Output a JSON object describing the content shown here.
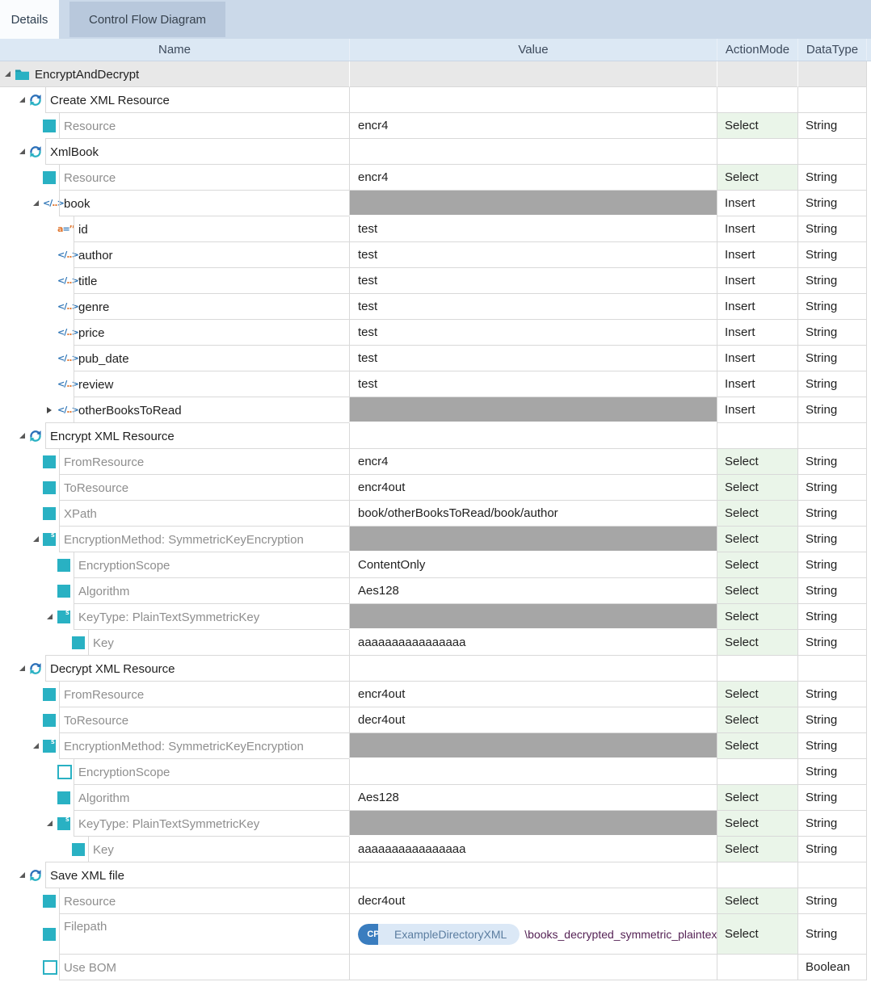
{
  "tabs": [
    {
      "label": "Details",
      "active": true
    },
    {
      "label": "Control Flow Diagram",
      "active": false
    }
  ],
  "columns": {
    "name": "Name",
    "value": "Value",
    "action": "ActionMode",
    "datatype": "DataType"
  },
  "colors": {
    "accent_teal": "#29b1c3",
    "accent_blue": "#2e75b6",
    "select_green_bg": "#eaf5e9",
    "gray_value_bar": "#a6a6a6",
    "root_row_bg": "#e8e8e8",
    "header_bg": "#dce8f4",
    "tabbar_bg": "#cbd9e9",
    "inactive_tab_bg": "#b8c8dc",
    "filepath_text": "#552255"
  },
  "filepath_value": {
    "badge": "CP",
    "directory": "ExampleDirectoryXML",
    "path": "\\books_decrypted_symmetric_plaintext.xml"
  },
  "rows": [
    {
      "name": "EncryptAndDecrypt",
      "level": 0,
      "icon": "folder",
      "tri": "open",
      "value": "",
      "vkind": "empty",
      "action": "",
      "dtype": "",
      "dim": false,
      "graybg": true
    },
    {
      "name": "Create XML Resource",
      "level": 1,
      "icon": "refresh",
      "tri": "open",
      "value": "",
      "vkind": "empty",
      "action": "",
      "dtype": "",
      "dim": false
    },
    {
      "name": "Resource",
      "level": 2,
      "icon": "sq",
      "tri": null,
      "value": "encr4",
      "vkind": "text",
      "action": "Select",
      "dtype": "String",
      "dim": true
    },
    {
      "name": "XmlBook",
      "level": 1,
      "icon": "refresh",
      "tri": "open",
      "value": "",
      "vkind": "empty",
      "action": "",
      "dtype": "",
      "dim": false
    },
    {
      "name": "Resource",
      "level": 2,
      "icon": "sq",
      "tri": null,
      "value": "encr4",
      "vkind": "text",
      "action": "Select",
      "dtype": "String",
      "dim": true
    },
    {
      "name": "book",
      "level": 2,
      "icon": "xml",
      "tri": "open",
      "value": "",
      "vkind": "gray",
      "action": "Insert",
      "dtype": "String",
      "dim": false
    },
    {
      "name": "id",
      "level": 3,
      "icon": "attr",
      "tri": null,
      "value": "test",
      "vkind": "text",
      "action": "Insert",
      "dtype": "String",
      "dim": false
    },
    {
      "name": "author",
      "level": 3,
      "icon": "xml",
      "tri": null,
      "value": "test",
      "vkind": "text",
      "action": "Insert",
      "dtype": "String",
      "dim": false
    },
    {
      "name": "title",
      "level": 3,
      "icon": "xml",
      "tri": null,
      "value": "test",
      "vkind": "text",
      "action": "Insert",
      "dtype": "String",
      "dim": false
    },
    {
      "name": "genre",
      "level": 3,
      "icon": "xml",
      "tri": null,
      "value": "test",
      "vkind": "text",
      "action": "Insert",
      "dtype": "String",
      "dim": false
    },
    {
      "name": "price",
      "level": 3,
      "icon": "xml",
      "tri": null,
      "value": "test",
      "vkind": "text",
      "action": "Insert",
      "dtype": "String",
      "dim": false
    },
    {
      "name": "pub_date",
      "level": 3,
      "icon": "xml",
      "tri": null,
      "value": "test",
      "vkind": "text",
      "action": "Insert",
      "dtype": "String",
      "dim": false
    },
    {
      "name": "review",
      "level": 3,
      "icon": "xml",
      "tri": null,
      "value": "test",
      "vkind": "text",
      "action": "Insert",
      "dtype": "String",
      "dim": false
    },
    {
      "name": "otherBooksToRead",
      "level": 3,
      "icon": "xml",
      "tri": "closed",
      "value": "",
      "vkind": "gray",
      "action": "Insert",
      "dtype": "String",
      "dim": false
    },
    {
      "name": "Encrypt XML Resource",
      "level": 1,
      "icon": "refresh",
      "tri": "open",
      "value": "",
      "vkind": "empty",
      "action": "",
      "dtype": "",
      "dim": false
    },
    {
      "name": "FromResource",
      "level": 2,
      "icon": "sq",
      "tri": null,
      "value": "encr4",
      "vkind": "text",
      "action": "Select",
      "dtype": "String",
      "dim": true
    },
    {
      "name": "ToResource",
      "level": 2,
      "icon": "sq",
      "tri": null,
      "value": "encr4out",
      "vkind": "text",
      "action": "Select",
      "dtype": "String",
      "dim": true
    },
    {
      "name": "XPath",
      "level": 2,
      "icon": "sq",
      "tri": null,
      "value": "book/otherBooksToRead/book/author",
      "vkind": "text",
      "action": "Select",
      "dtype": "String",
      "dim": true
    },
    {
      "name": "EncryptionMethod: SymmetricKeyEncryption",
      "level": 2,
      "icon": "sqs",
      "tri": "open",
      "value": "",
      "vkind": "gray",
      "action": "Select",
      "dtype": "String",
      "dim": true
    },
    {
      "name": "EncryptionScope",
      "level": 3,
      "icon": "sq",
      "tri": null,
      "value": "ContentOnly",
      "vkind": "text",
      "action": "Select",
      "dtype": "String",
      "dim": true
    },
    {
      "name": "Algorithm",
      "level": 3,
      "icon": "sq",
      "tri": null,
      "value": "Aes128",
      "vkind": "text",
      "action": "Select",
      "dtype": "String",
      "dim": true
    },
    {
      "name": "KeyType: PlainTextSymmetricKey",
      "level": 3,
      "icon": "sqs",
      "tri": "open",
      "value": "",
      "vkind": "gray",
      "action": "Select",
      "dtype": "String",
      "dim": true
    },
    {
      "name": "Key",
      "level": 4,
      "icon": "sq",
      "tri": null,
      "value": "aaaaaaaaaaaaaaaa",
      "vkind": "text",
      "action": "Select",
      "dtype": "String",
      "dim": true
    },
    {
      "name": "Decrypt XML Resource",
      "level": 1,
      "icon": "refresh",
      "tri": "open",
      "value": "",
      "vkind": "empty",
      "action": "",
      "dtype": "",
      "dim": false
    },
    {
      "name": "FromResource",
      "level": 2,
      "icon": "sq",
      "tri": null,
      "value": "encr4out",
      "vkind": "text",
      "action": "Select",
      "dtype": "String",
      "dim": true
    },
    {
      "name": "ToResource",
      "level": 2,
      "icon": "sq",
      "tri": null,
      "value": "decr4out",
      "vkind": "text",
      "action": "Select",
      "dtype": "String",
      "dim": true
    },
    {
      "name": "EncryptionMethod: SymmetricKeyEncryption",
      "level": 2,
      "icon": "sqs",
      "tri": "open",
      "value": "",
      "vkind": "gray",
      "action": "Select",
      "dtype": "String",
      "dim": true
    },
    {
      "name": "EncryptionScope",
      "level": 3,
      "icon": "sqe",
      "tri": null,
      "value": "",
      "vkind": "empty",
      "action": "",
      "dtype": "String",
      "dim": true
    },
    {
      "name": "Algorithm",
      "level": 3,
      "icon": "sq",
      "tri": null,
      "value": "Aes128",
      "vkind": "text",
      "action": "Select",
      "dtype": "String",
      "dim": true
    },
    {
      "name": "KeyType: PlainTextSymmetricKey",
      "level": 3,
      "icon": "sqs",
      "tri": "open",
      "value": "",
      "vkind": "gray",
      "action": "Select",
      "dtype": "String",
      "dim": true
    },
    {
      "name": "Key",
      "level": 4,
      "icon": "sq",
      "tri": null,
      "value": "aaaaaaaaaaaaaaaa",
      "vkind": "text",
      "action": "Select",
      "dtype": "String",
      "dim": true
    },
    {
      "name": "Save XML file",
      "level": 1,
      "icon": "refresh",
      "tri": "open",
      "value": "",
      "vkind": "empty",
      "action": "",
      "dtype": "",
      "dim": false
    },
    {
      "name": "Resource",
      "level": 2,
      "icon": "sq",
      "tri": null,
      "value": "decr4out",
      "vkind": "text",
      "action": "Select",
      "dtype": "String",
      "dim": true
    },
    {
      "name": "Filepath",
      "level": 2,
      "icon": "sq",
      "tri": null,
      "value": "",
      "vkind": "filepath",
      "action": "Select",
      "dtype": "String",
      "dim": true,
      "tall": true
    },
    {
      "name": "Use BOM",
      "level": 2,
      "icon": "sqe",
      "tri": null,
      "value": "",
      "vkind": "empty",
      "action": "",
      "dtype": "Boolean",
      "dim": true
    }
  ]
}
